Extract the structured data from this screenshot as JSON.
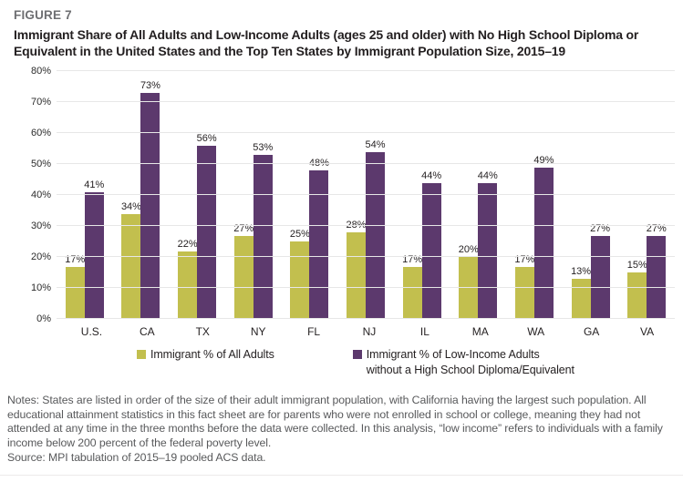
{
  "figure_label": "FIGURE 7",
  "title": "Immigrant Share of All Adults and Low-Income Adults (ages 25 and older) with No High School Diploma or Equivalent in the United States and the Top Ten States by Immigrant Population Size, 2015–19",
  "chart_data": {
    "type": "bar",
    "categories": [
      "U.S.",
      "CA",
      "TX",
      "NY",
      "FL",
      "NJ",
      "IL",
      "MA",
      "WA",
      "GA",
      "VA"
    ],
    "series": [
      {
        "name": "Immigrant % of All Adults",
        "color": "#c2bf4e",
        "values": [
          17,
          34,
          22,
          27,
          25,
          28,
          17,
          20,
          17,
          13,
          15
        ]
      },
      {
        "name": "Immigrant % of Low-Income Adults without a High School Diploma/Equivalent",
        "color": "#5c396d",
        "values": [
          41,
          73,
          56,
          53,
          48,
          54,
          44,
          44,
          49,
          27,
          27
        ]
      }
    ],
    "title": "",
    "xlabel": "",
    "ylabel": "",
    "ylim": [
      0,
      80
    ],
    "ytick_step": 10,
    "ytick_labels": [
      "0%",
      "10%",
      "20%",
      "30%",
      "40%",
      "50%",
      "60%",
      "70%",
      "80%"
    ],
    "grid": true,
    "data_labels": true,
    "data_label_suffix": "%",
    "legend_position": "bottom"
  },
  "legend": {
    "items": [
      {
        "label": "Immigrant % of All Adults",
        "color": "#c2bf4e"
      },
      {
        "label_line1": "Immigrant % of Low-Income Adults",
        "label_line2": "without a High School Diploma/Equivalent",
        "color": "#5c396d"
      }
    ]
  },
  "notes": "Notes: States are listed in order of the size of their adult immigrant population, with California having the largest such population. All educational attainment statistics in this fact sheet are for parents who were not enrolled in school or college, meaning they had not attended at any time in the three months before the data were collected. In this analysis, “low income” refers to individuals with a family income below 200 percent of the federal poverty level.",
  "source": "Source: MPI tabulation of 2015–19 pooled ACS data."
}
